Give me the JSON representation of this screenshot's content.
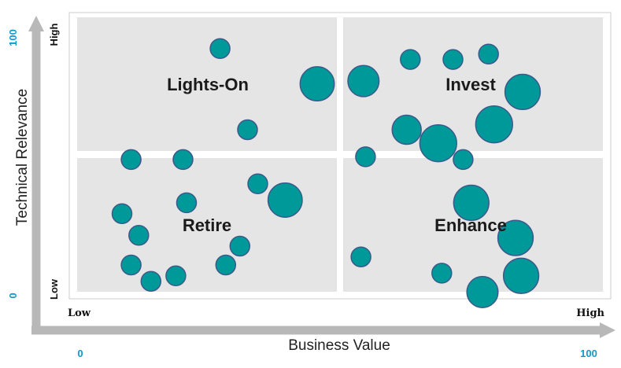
{
  "chart_data": {
    "type": "scatter",
    "variant": "bubble",
    "xlabel": "Business Value",
    "ylabel": "Technical Relevance",
    "xlim": [
      0,
      100
    ],
    "ylim": [
      0,
      100
    ],
    "x_ticks": {
      "min_label": "0",
      "max_label": "100",
      "low_label": "Low",
      "high_label": "High"
    },
    "y_ticks": {
      "min_label": "0",
      "max_label": "100",
      "low_label": "Low",
      "high_label": "High"
    },
    "quadrants": [
      {
        "label": "Lights-On"
      },
      {
        "label": "Invest"
      },
      {
        "label": "Retire"
      },
      {
        "label": "Enhance"
      }
    ],
    "points": [
      {
        "x": 27.5,
        "y": 89,
        "size": 1
      },
      {
        "x": 46.6,
        "y": 76,
        "size": 3
      },
      {
        "x": 32.9,
        "y": 59,
        "size": 1
      },
      {
        "x": 10.0,
        "y": 48,
        "size": 1
      },
      {
        "x": 20.2,
        "y": 48,
        "size": 1
      },
      {
        "x": 55.7,
        "y": 77,
        "size": 2.5
      },
      {
        "x": 64.9,
        "y": 85,
        "size": 1
      },
      {
        "x": 73.3,
        "y": 85,
        "size": 1
      },
      {
        "x": 80.3,
        "y": 87,
        "size": 1
      },
      {
        "x": 87.0,
        "y": 73,
        "size": 3.2
      },
      {
        "x": 64.2,
        "y": 59,
        "size": 2.2
      },
      {
        "x": 70.4,
        "y": 54,
        "size": 3.5
      },
      {
        "x": 81.4,
        "y": 61,
        "size": 3.5
      },
      {
        "x": 56.1,
        "y": 49,
        "size": 1
      },
      {
        "x": 75.3,
        "y": 48,
        "size": 1
      },
      {
        "x": 34.9,
        "y": 39,
        "size": 1
      },
      {
        "x": 20.9,
        "y": 32,
        "size": 1
      },
      {
        "x": 40.3,
        "y": 33,
        "size": 3
      },
      {
        "x": 8.2,
        "y": 28,
        "size": 1
      },
      {
        "x": 11.5,
        "y": 20,
        "size": 1
      },
      {
        "x": 31.4,
        "y": 16,
        "size": 1
      },
      {
        "x": 10.0,
        "y": 9,
        "size": 1
      },
      {
        "x": 13.9,
        "y": 3,
        "size": 1
      },
      {
        "x": 18.8,
        "y": 5,
        "size": 1
      },
      {
        "x": 28.6,
        "y": 9,
        "size": 1
      },
      {
        "x": 76.9,
        "y": 32,
        "size": 3.2
      },
      {
        "x": 85.6,
        "y": 19,
        "size": 3.2
      },
      {
        "x": 55.2,
        "y": 12,
        "size": 1
      },
      {
        "x": 71.1,
        "y": 6,
        "size": 1
      },
      {
        "x": 86.7,
        "y": 5,
        "size": 3.2
      },
      {
        "x": 79.1,
        "y": -1,
        "size": 2.5
      }
    ],
    "colors": {
      "bubble_fill": "#00999a",
      "bubble_stroke": "#3b5a8a",
      "panel": "#e5e5e5",
      "axis_arrow": "#b8b8b8",
      "tick_number": "#1199cc"
    },
    "grid": false,
    "legend": "none"
  }
}
